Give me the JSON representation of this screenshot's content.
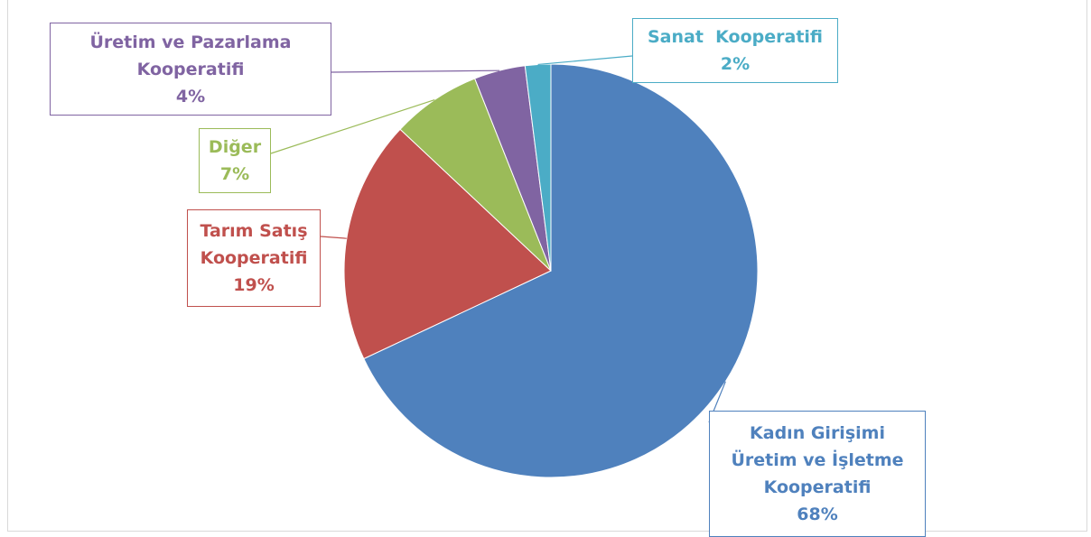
{
  "chart_data": {
    "type": "pie",
    "categories": [
      "Kadın Girişimi Üretim ve İşletme Kooperatifi",
      "Tarım Satış Kooperatifi",
      "Diğer",
      "Üretim ve Pazarlama Kooperatifi",
      "Sanat  Kooperatifi"
    ],
    "values": [
      68,
      19,
      7,
      4,
      2
    ],
    "value_labels": [
      "68%",
      "19%",
      "7%",
      "4%",
      "2%"
    ],
    "colors": [
      "#4f81bd",
      "#c0504d",
      "#9bbb59",
      "#8064a2",
      "#4bacc6"
    ]
  }
}
